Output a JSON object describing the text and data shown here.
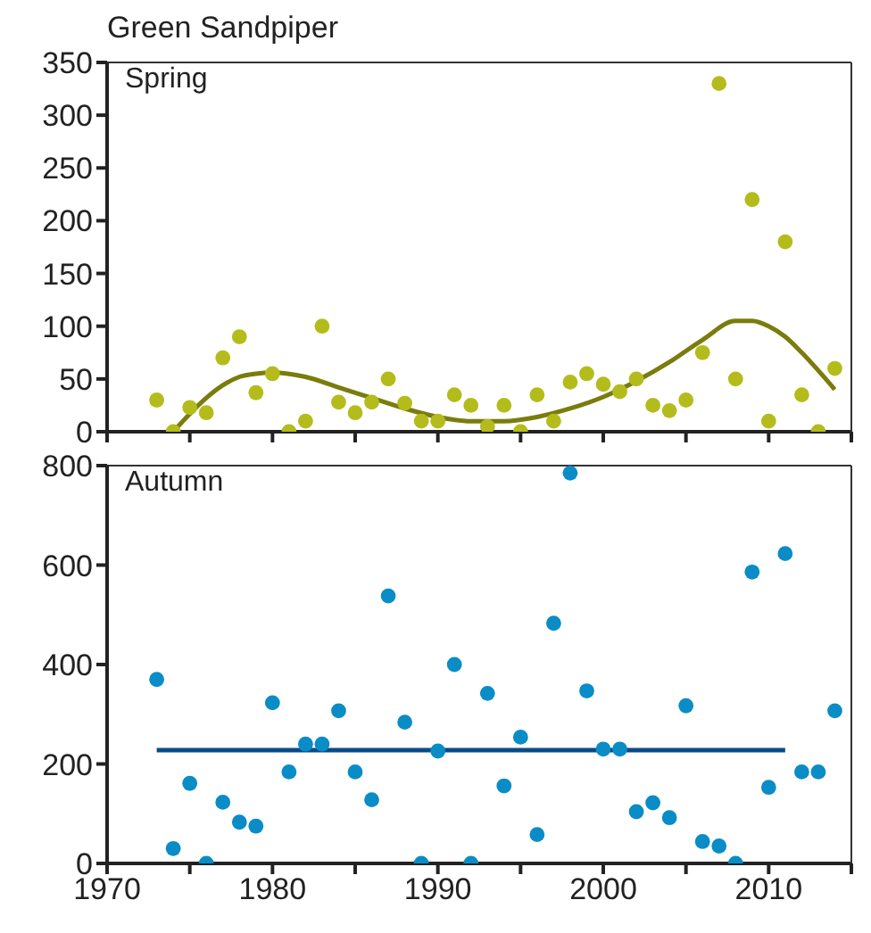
{
  "chart_data": [
    {
      "type": "scatter",
      "title": "Green Sandpiper",
      "annotations": [
        "Spring"
      ],
      "xlim": [
        1970,
        2015
      ],
      "xticks": [
        1970,
        {
          "value": 1975,
          "label": null
        },
        1980,
        {
          "value": 1985,
          "label": null
        },
        1990,
        {
          "value": 1995,
          "label": null
        },
        2000,
        {
          "value": 2005,
          "label": null
        },
        2010,
        {
          "value": 2015,
          "label": null
        }
      ],
      "ylim": [
        0,
        350
      ],
      "yticks": [
        0,
        50,
        100,
        150,
        200,
        250,
        300,
        350
      ],
      "tick_labels": "y",
      "series": [
        {
          "type": "scatter",
          "color": "#b4bc1c",
          "x": [
            1973,
            1974,
            1975,
            1976,
            1977,
            1978,
            1979,
            1980,
            1981,
            1982,
            1983,
            1984,
            1985,
            1986,
            1987,
            1988,
            1989,
            1990,
            1991,
            1992,
            1993,
            1994,
            1995,
            1996,
            1997,
            1998,
            1999,
            2000,
            2001,
            2002,
            2003,
            2004,
            2005,
            2006,
            2007,
            2008,
            2009,
            2010,
            2011,
            2012,
            2013,
            2014
          ],
          "values": [
            30,
            0,
            23,
            18,
            70,
            90,
            37,
            55,
            0,
            10,
            100,
            28,
            18,
            28,
            50,
            27,
            10,
            10,
            35,
            25,
            5,
            25,
            0,
            35,
            10,
            47,
            55,
            45,
            38,
            50,
            25,
            20,
            30,
            75,
            330,
            50,
            220,
            10,
            180,
            35,
            0,
            60
          ]
        },
        {
          "type": "line",
          "color": "#7a7c0c",
          "x": [
            1974,
            1975,
            1976,
            1977,
            1978,
            1979,
            1980,
            1982,
            1984,
            1986,
            1988,
            1990,
            1992,
            1994,
            1996,
            1998,
            2000,
            2002,
            2004,
            2006,
            2008,
            2009,
            2010,
            2011,
            2012,
            2013,
            2014
          ],
          "values": [
            0,
            17,
            32,
            44,
            52,
            55,
            56,
            52,
            42,
            32,
            22,
            14,
            10,
            10,
            14,
            22,
            33,
            48,
            66,
            87,
            105,
            105,
            100,
            90,
            75,
            58,
            40
          ]
        }
      ]
    },
    {
      "type": "scatter",
      "annotations": [
        "Autumn"
      ],
      "xlim": [
        1970,
        2015
      ],
      "xticks": [
        1970,
        {
          "value": 1975,
          "label": null
        },
        1980,
        {
          "value": 1985,
          "label": null
        },
        1990,
        {
          "value": 1995,
          "label": null
        },
        2000,
        {
          "value": 2005,
          "label": null
        },
        2010,
        {
          "value": 2015,
          "label": null
        }
      ],
      "ylim": [
        0,
        800
      ],
      "yticks": [
        0,
        200,
        400,
        600,
        800
      ],
      "series": [
        {
          "type": "scatter",
          "color": "#0a8cc6",
          "x": [
            1973,
            1974,
            1975,
            1976,
            1977,
            1978,
            1979,
            1980,
            1981,
            1982,
            1983,
            1984,
            1985,
            1986,
            1987,
            1988,
            1989,
            1990,
            1991,
            1992,
            1993,
            1994,
            1995,
            1996,
            1997,
            1998,
            1999,
            2000,
            2001,
            2002,
            2003,
            2004,
            2005,
            2006,
            2007,
            2008,
            2009,
            2010,
            2011,
            2012,
            2013,
            2014
          ],
          "values": [
            370,
            30,
            161,
            0,
            123,
            83,
            75,
            323,
            184,
            240,
            240,
            307,
            184,
            128,
            538,
            284,
            0,
            226,
            400,
            0,
            342,
            156,
            254,
            58,
            483,
            785,
            347,
            230,
            230,
            104,
            122,
            92,
            317,
            44,
            35,
            0,
            586,
            153,
            623,
            184,
            184,
            307
          ]
        },
        {
          "type": "line",
          "color": "#0b4a86",
          "x": [
            1973,
            2011
          ],
          "values": [
            228,
            228
          ]
        }
      ]
    }
  ]
}
